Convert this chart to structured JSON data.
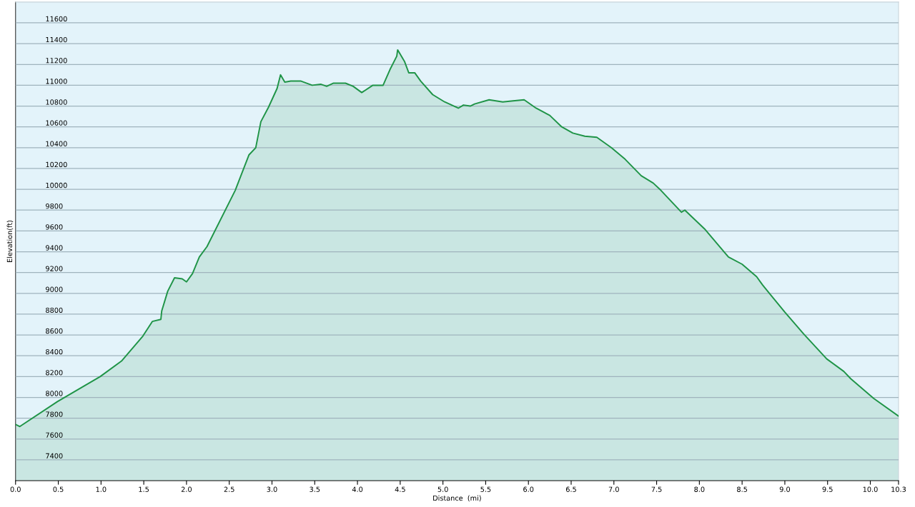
{
  "chart_data": {
    "type": "area",
    "xlabel": "Distance  (mi)",
    "ylabel": "Elevation(ft)",
    "x": [
      0,
      0.05,
      0.49,
      0.99,
      1.24,
      1.49,
      1.6,
      1.7,
      1.71,
      1.78,
      1.86,
      1.95,
      2.0,
      2.07,
      2.15,
      2.24,
      2.57,
      2.73,
      2.81,
      2.87,
      2.96,
      3.06,
      3.1,
      3.15,
      3.22,
      3.34,
      3.47,
      3.57,
      3.64,
      3.72,
      3.86,
      3.95,
      4.05,
      4.18,
      4.3,
      4.38,
      4.46,
      4.47,
      4.55,
      4.6,
      4.67,
      4.74,
      4.88,
      5.02,
      5.18,
      5.24,
      5.32,
      5.37,
      5.54,
      5.7,
      5.82,
      5.95,
      6.09,
      6.25,
      6.39,
      6.52,
      6.66,
      6.8,
      6.97,
      7.13,
      7.32,
      7.46,
      7.55,
      7.79,
      7.83,
      8.06,
      8.34,
      8.5,
      8.67,
      8.74,
      8.83,
      9.0,
      9.22,
      9.49,
      9.69,
      9.77,
      10.04,
      10.33
    ],
    "series": [
      {
        "color": "#1f9447",
        "values": [
          7740,
          7720,
          7960,
          8200,
          8350,
          8590,
          8730,
          8750,
          8830,
          9020,
          9150,
          9140,
          9110,
          9190,
          9350,
          9450,
          9990,
          10330,
          10400,
          10650,
          10790,
          10970,
          11100,
          11030,
          11040,
          11040,
          11000,
          11010,
          10990,
          11020,
          11020,
          10990,
          10930,
          11000,
          11000,
          11150,
          11280,
          11340,
          11230,
          11120,
          11120,
          11040,
          10910,
          10840,
          10780,
          10810,
          10800,
          10820,
          10860,
          10840,
          10850,
          10860,
          10780,
          10710,
          10600,
          10540,
          10510,
          10500,
          10400,
          10290,
          10130,
          10060,
          9990,
          9780,
          9800,
          9620,
          9350,
          9280,
          9160,
          9080,
          8990,
          8820,
          8610,
          8370,
          8250,
          8180,
          7990,
          7820
        ]
      }
    ],
    "xlim": [
      0,
      10.33
    ],
    "xticks": [
      {
        "value": 0,
        "label": "0.0"
      },
      0.5,
      {
        "value": 1,
        "label": "1.0"
      },
      1.5,
      {
        "value": 2,
        "label": "2.0"
      },
      2.5,
      {
        "value": 3,
        "label": "3.0"
      },
      3.5,
      {
        "value": 4,
        "label": "4.0"
      },
      4.5,
      {
        "value": 5,
        "label": "5.0"
      },
      5.5,
      {
        "value": 6,
        "label": "6.0"
      },
      6.5,
      {
        "value": 7,
        "label": "7.0"
      },
      7.5,
      {
        "value": 8,
        "label": "8.0"
      },
      8.5,
      {
        "value": 9,
        "label": "9.0"
      },
      9.5,
      {
        "value": 10,
        "label": "10.0"
      },
      {
        "value": 10.33,
        "label": "10.3"
      }
    ],
    "ylim": [
      7200,
      11800
    ],
    "yticks": [
      7400,
      7600,
      7800,
      8000,
      8200,
      8400,
      8600,
      8800,
      9000,
      9200,
      9400,
      9600,
      9800,
      10000,
      10200,
      10400,
      10600,
      10800,
      11000,
      11200,
      11400,
      11600
    ],
    "grid": "y"
  }
}
